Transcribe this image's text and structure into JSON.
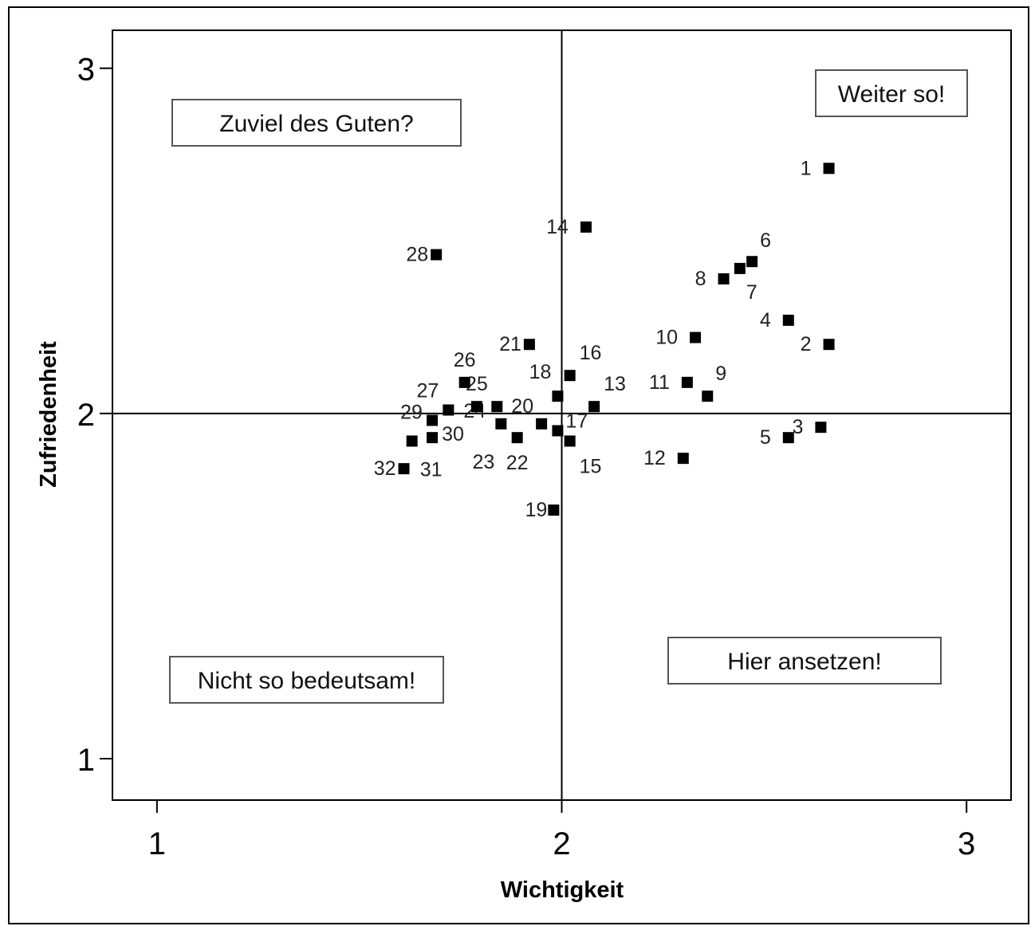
{
  "chart_data": {
    "type": "scatter",
    "title": "",
    "xlabel": "Wichtigkeit",
    "ylabel": "Zufriedenheit",
    "xlim": [
      0.89,
      3.11
    ],
    "ylim": [
      0.88,
      3.11
    ],
    "xticks": [
      1,
      2,
      3
    ],
    "yticks": [
      1,
      2,
      3
    ],
    "xtick_labels": [
      "1",
      "2",
      "3"
    ],
    "ytick_labels": [
      "1",
      "2",
      "3"
    ],
    "reference_lines": {
      "x": 2,
      "y": 2
    },
    "grid": false,
    "marker": "square",
    "marker_color": "#000000",
    "points": [
      {
        "label": "1",
        "x": 2.66,
        "y": 2.71
      },
      {
        "label": "2",
        "x": 2.66,
        "y": 2.2
      },
      {
        "label": "3",
        "x": 2.64,
        "y": 1.96
      },
      {
        "label": "4",
        "x": 2.56,
        "y": 2.27
      },
      {
        "label": "5",
        "x": 2.56,
        "y": 1.93
      },
      {
        "label": "6",
        "x": 2.47,
        "y": 2.44
      },
      {
        "label": "7",
        "x": 2.44,
        "y": 2.42
      },
      {
        "label": "8",
        "x": 2.4,
        "y": 2.39
      },
      {
        "label": "9",
        "x": 2.36,
        "y": 2.05
      },
      {
        "label": "10",
        "x": 2.33,
        "y": 2.22
      },
      {
        "label": "11",
        "x": 2.31,
        "y": 2.09
      },
      {
        "label": "12",
        "x": 2.3,
        "y": 1.87
      },
      {
        "label": "13",
        "x": 2.08,
        "y": 2.02
      },
      {
        "label": "14",
        "x": 2.06,
        "y": 2.54
      },
      {
        "label": "15",
        "x": 2.02,
        "y": 1.92
      },
      {
        "label": "16",
        "x": 2.02,
        "y": 2.11
      },
      {
        "label": "17",
        "x": 1.99,
        "y": 1.95
      },
      {
        "label": "18",
        "x": 1.99,
        "y": 2.05
      },
      {
        "label": "19",
        "x": 1.98,
        "y": 1.72
      },
      {
        "label": "20",
        "x": 1.95,
        "y": 1.97
      },
      {
        "label": "21",
        "x": 1.92,
        "y": 2.2
      },
      {
        "label": "22",
        "x": 1.89,
        "y": 1.93
      },
      {
        "label": "23",
        "x": 1.85,
        "y": 1.97
      },
      {
        "label": "24",
        "x": 1.84,
        "y": 2.02
      },
      {
        "label": "25",
        "x": 1.79,
        "y": 2.02
      },
      {
        "label": "26",
        "x": 1.76,
        "y": 2.09
      },
      {
        "label": "27",
        "x": 1.72,
        "y": 2.01
      },
      {
        "label": "28",
        "x": 1.69,
        "y": 2.46
      },
      {
        "label": "29",
        "x": 1.68,
        "y": 1.98
      },
      {
        "label": "30",
        "x": 1.68,
        "y": 1.93
      },
      {
        "label": "31",
        "x": 1.63,
        "y": 1.92
      },
      {
        "label": "32",
        "x": 1.61,
        "y": 1.84
      }
    ],
    "annotations": [
      {
        "text": "Weiter so!"
      },
      {
        "text": "Zuviel des Guten?"
      },
      {
        "text": "Nicht so bedeutsam!"
      },
      {
        "text": "Hier ansetzen!"
      }
    ]
  }
}
